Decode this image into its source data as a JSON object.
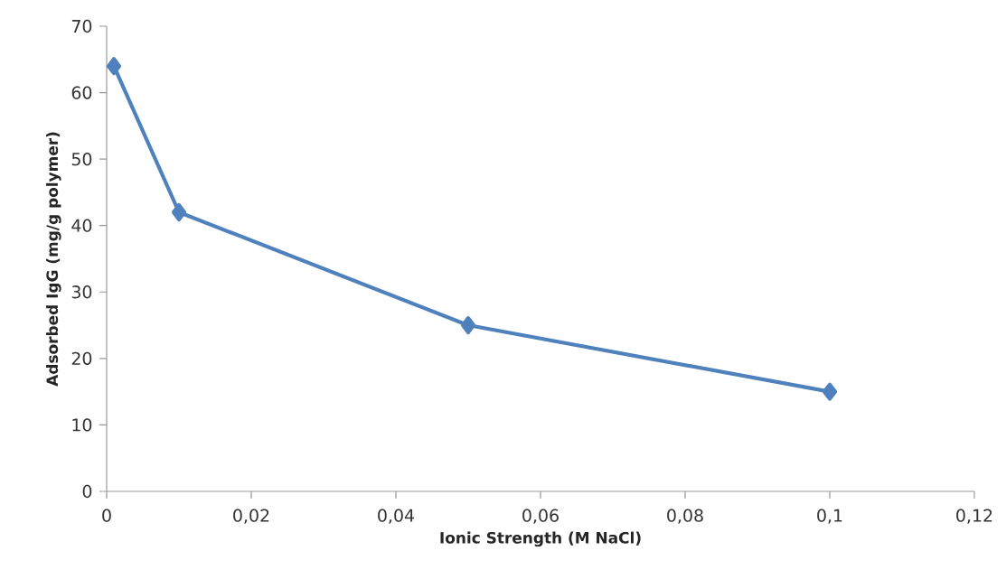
{
  "chart_data": {
    "type": "line",
    "xlabel": "Ionic Strength (M NaCl)",
    "ylabel": "Adsorbed IgG  (mg/g polymer)",
    "x": [
      0.001,
      0.01,
      0.05,
      0.1
    ],
    "series": [
      {
        "color": "#4f81bd",
        "values": [
          64,
          42,
          25,
          15
        ]
      }
    ],
    "marker": "diamond",
    "line_style": "solid",
    "grid": false,
    "xlim": [
      0,
      0.12
    ],
    "ylim": [
      0,
      70
    ],
    "xticks": [
      0,
      {
        "value": 0.02,
        "label": "0,02"
      },
      {
        "value": 0.04,
        "label": "0,04"
      },
      {
        "value": 0.06,
        "label": "0,06"
      },
      {
        "value": 0.08,
        "label": "0,08"
      },
      {
        "value": 0.1,
        "label": "0,1"
      },
      {
        "value": 0.12,
        "label": "0,12"
      }
    ],
    "yticks": [
      0,
      10,
      20,
      30,
      40,
      50,
      60,
      70
    ]
  }
}
